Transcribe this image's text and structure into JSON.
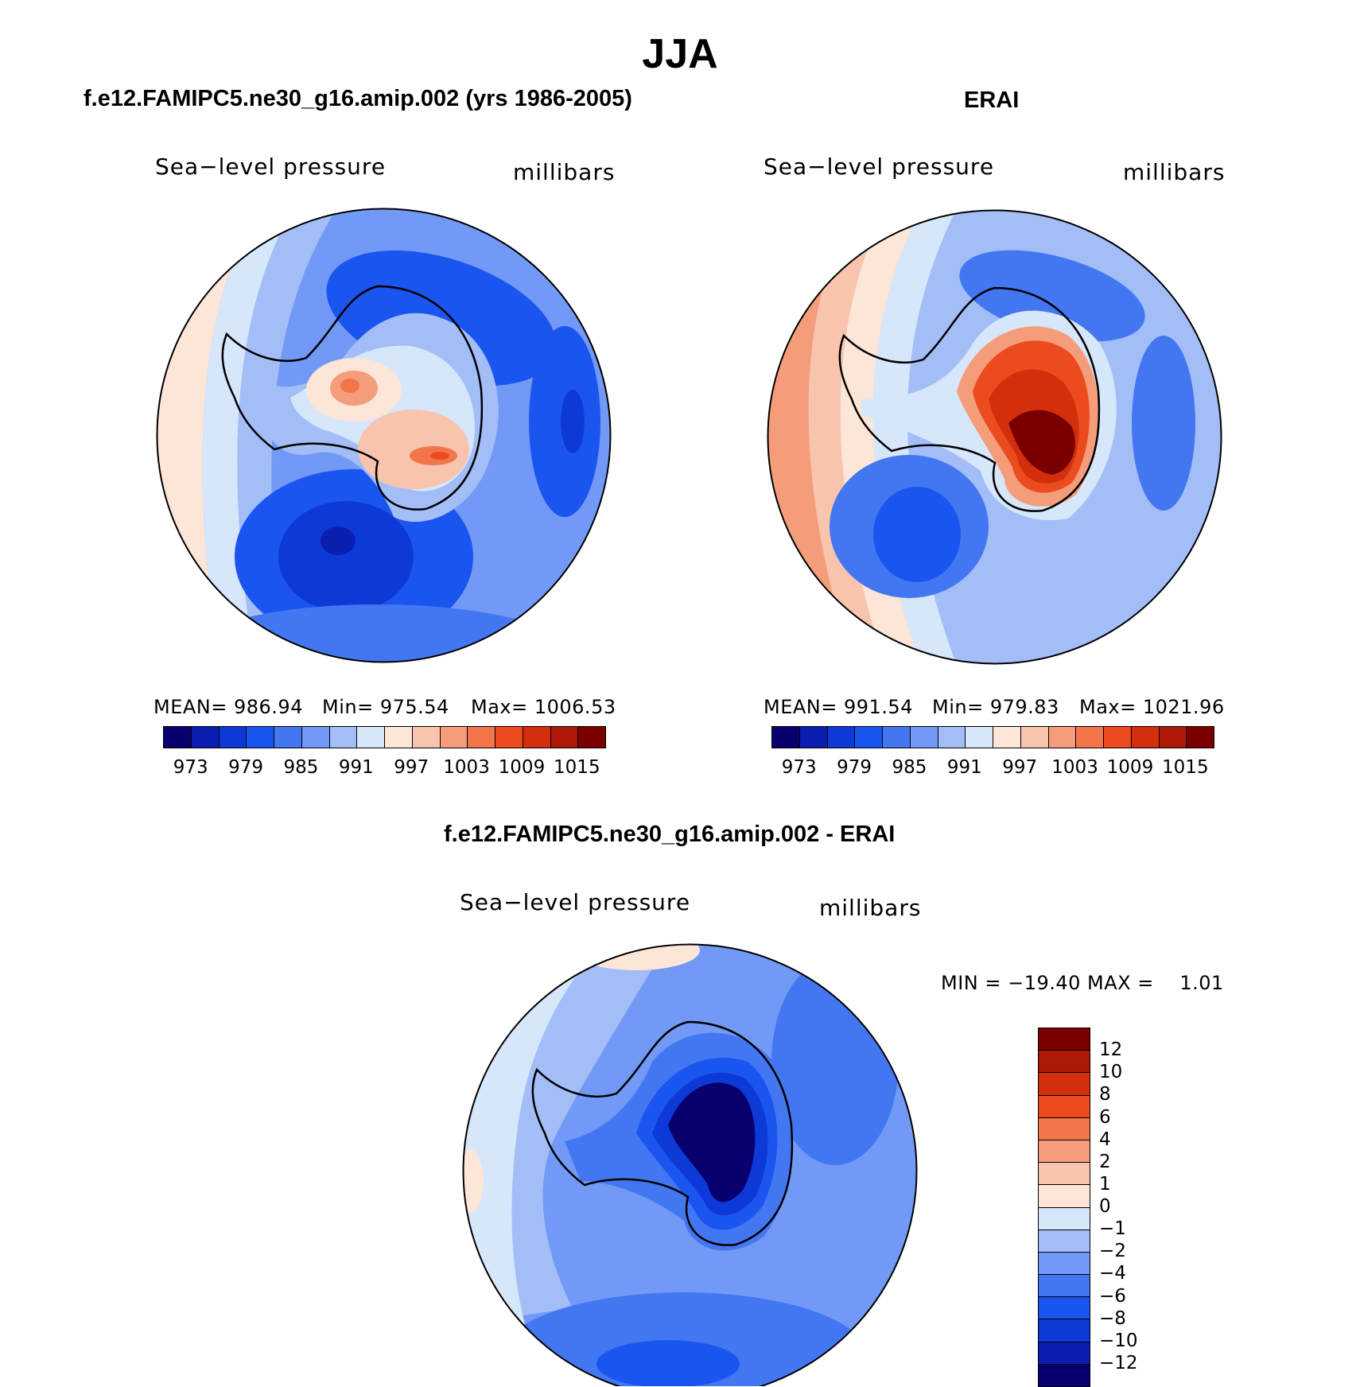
{
  "title": "JJA",
  "panels": {
    "model": {
      "title": "f.e12.FAMIPC5.ne30_g16.amip.002 (yrs 1986-2005)",
      "variable": "Sea−level pressure",
      "units": "millibars",
      "stats": {
        "mean": "MEAN= 986.94",
        "min": "Min= 975.54",
        "max": "Max= 1006.53"
      }
    },
    "obs": {
      "title": "ERAI",
      "variable": "Sea−level pressure",
      "units": "millibars",
      "stats": {
        "mean": "MEAN= 991.54",
        "min": "Min= 979.83",
        "max": "Max= 1021.96"
      }
    },
    "diff": {
      "title": "f.e12.FAMIPC5.ne30_g16.amip.002 - ERAI",
      "variable": "Sea−level pressure",
      "units": "millibars",
      "stats": "MIN = −19.40 MAX =    1.01"
    }
  },
  "colorbar_main": {
    "colors": [
      "#08006e",
      "#0a1fb0",
      "#0d3ad6",
      "#1b55f0",
      "#4377f2",
      "#7199f5",
      "#a3bdf7",
      "#d6e6fb",
      "#fde6d8",
      "#f9c4ad",
      "#f59d7b",
      "#f2764a",
      "#ec4b1f",
      "#d42f0c",
      "#ac1a06",
      "#7a0000"
    ],
    "ticks": [
      "973",
      "979",
      "985",
      "991",
      "997",
      "1003",
      "1009",
      "1015"
    ]
  },
  "colorbar_diff": {
    "colors": [
      "#7a0000",
      "#ac1a06",
      "#d42f0c",
      "#ec4b1f",
      "#f2764a",
      "#f59d7b",
      "#f9c4ad",
      "#fde6d8",
      "#d6e6fb",
      "#a3bdf7",
      "#7199f5",
      "#4377f2",
      "#1b55f0",
      "#0d3ad6",
      "#0a1fb0",
      "#08006e"
    ],
    "ticks": [
      "12",
      "10",
      "8",
      "6",
      "4",
      "2",
      "1",
      "0",
      "−1",
      "−2",
      "−4",
      "−6",
      "−8",
      "−10",
      "−12"
    ]
  },
  "map_colors": {
    "ocean_low": "#0d3ad6",
    "ocean_mid": "#4377f2",
    "ocean_light": "#a3bdf7",
    "ocean_pale": "#d6e6fb",
    "neutral_warm": "#fde6d8",
    "warm": "#f59d7b",
    "hot": "#d42f0c",
    "very_hot": "#7a0000",
    "diff_deep": "#08006e"
  }
}
